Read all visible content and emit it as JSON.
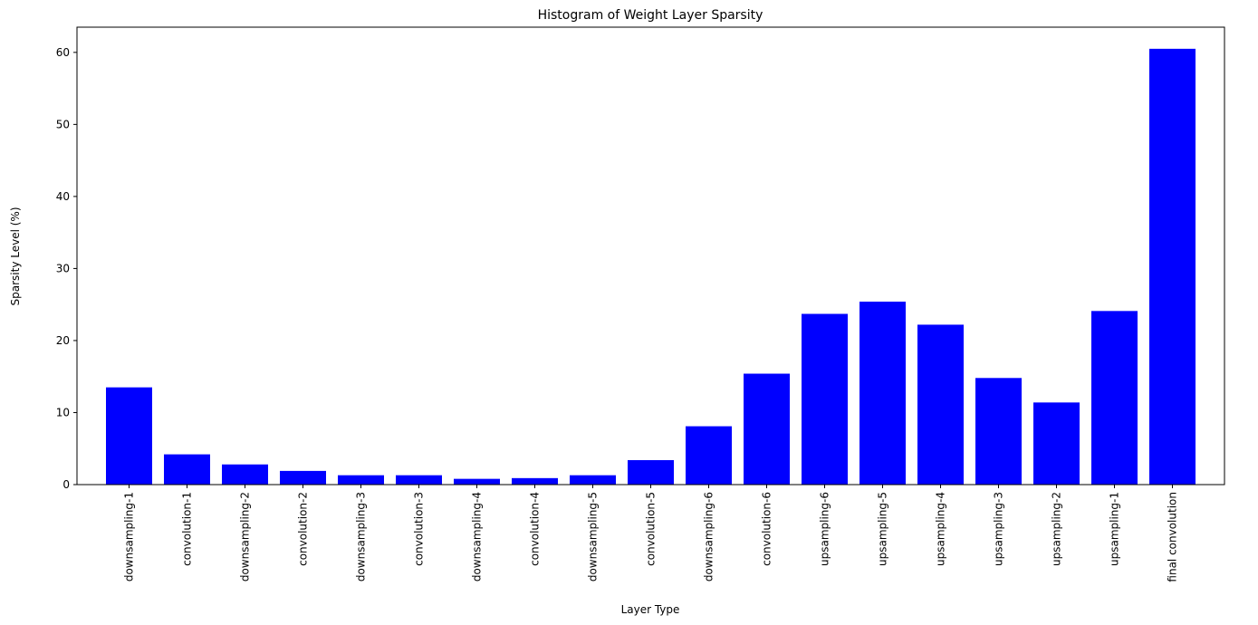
{
  "chart_data": {
    "type": "bar",
    "title": "Histogram of Weight Layer Sparsity",
    "xlabel": "Layer Type",
    "ylabel": "Sparsity Level (%)",
    "categories": [
      "downsampling-1",
      "convolution-1",
      "downsampling-2",
      "convolution-2",
      "downsampling-3",
      "convolution-3",
      "downsampling-4",
      "convolution-4",
      "downsampling-5",
      "convolution-5",
      "downsampling-6",
      "convolution-6",
      "upsampling-6",
      "upsampling-5",
      "upsampling-4",
      "upsampling-3",
      "upsampling-2",
      "upsampling-1",
      "final convolution"
    ],
    "values": [
      13.5,
      4.2,
      2.8,
      1.9,
      1.3,
      1.3,
      0.8,
      0.9,
      1.3,
      3.4,
      8.1,
      15.4,
      23.7,
      25.4,
      22.2,
      14.8,
      11.4,
      24.1,
      60.5
    ],
    "ylim": [
      0,
      63.5
    ],
    "yticks": [
      0,
      10,
      20,
      30,
      40,
      50,
      60
    ],
    "bar_color": "#0000ff",
    "grid": false,
    "legend": "none"
  }
}
